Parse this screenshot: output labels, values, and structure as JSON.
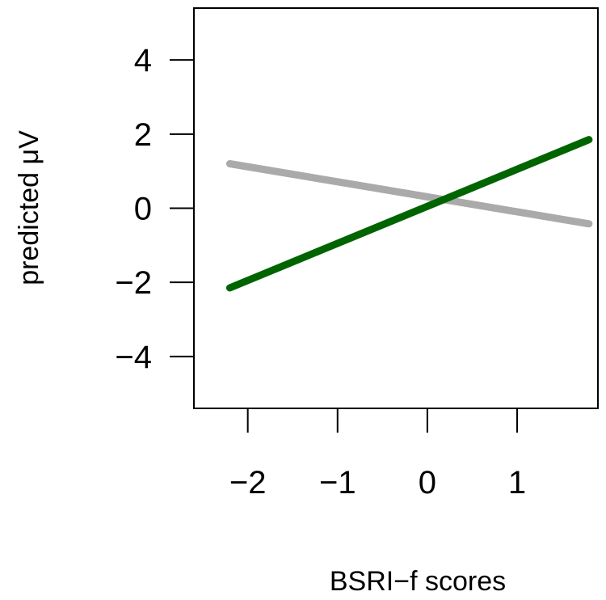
{
  "chart_data": {
    "type": "line",
    "title": "",
    "xlabel": "BSRI−f scores",
    "ylabel": "predicted μV",
    "xlim": [
      -2.6,
      1.9
    ],
    "ylim": [
      -5.4,
      5.4
    ],
    "x_ticks": [
      -2,
      -1,
      0,
      1
    ],
    "x_tick_labels": [
      "−2",
      "−1",
      "0",
      "1"
    ],
    "y_ticks": [
      -4,
      -2,
      0,
      2,
      4
    ],
    "y_tick_labels": [
      "−4",
      "−2",
      "0",
      "2",
      "4"
    ],
    "grid": false,
    "legend": "none",
    "series": [
      {
        "color": "#aaaaaa",
        "x": [
          -2.2,
          1.8
        ],
        "y": [
          1.2,
          -0.42
        ]
      },
      {
        "color": "#006400",
        "x": [
          -2.2,
          1.8
        ],
        "y": [
          -2.15,
          1.85
        ]
      }
    ]
  }
}
